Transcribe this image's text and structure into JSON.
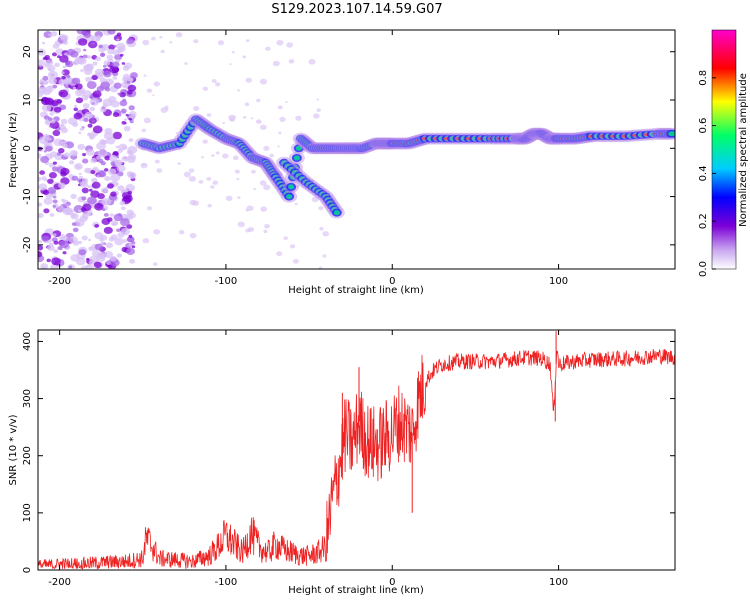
{
  "title": "S129.2023.107.14.59.G07",
  "chart_data": [
    {
      "type": "heatmap",
      "xlabel": "Height of straight line (km)",
      "ylabel": "Frequency (Hz)",
      "xlim": [
        -213,
        170
      ],
      "ylim": [
        -25,
        24.5
      ],
      "xticks": [
        -200,
        -100,
        0,
        100
      ],
      "yticks": [
        -20,
        -10,
        0,
        10,
        20
      ],
      "colorbar": {
        "label": "Normalized spectral amplitude",
        "range": [
          0,
          1
        ],
        "ticks": [
          "0.0",
          "0.2",
          "0.4",
          "0.6",
          "0.8"
        ],
        "colors": [
          "#ffffff",
          "#7b00d6",
          "#0000ff",
          "#00ccff",
          "#00ff66",
          "#ffff00",
          "#ff0000",
          "#ff00cc"
        ]
      },
      "ridge": {
        "x": [
          -150,
          -140,
          -128,
          -118,
          -110,
          -100,
          -92,
          -84,
          -76,
          -70,
          -62,
          -55,
          -48,
          -40,
          -32,
          -25,
          -18,
          -10,
          -5,
          0,
          10,
          20,
          40,
          60,
          75,
          80,
          85,
          90,
          95,
          100,
          110,
          120,
          140,
          160,
          170
        ],
        "y": [
          1,
          0,
          1,
          6,
          4,
          2,
          1,
          -2,
          -3,
          -6,
          -10,
          2,
          0,
          0,
          0,
          0,
          0,
          1,
          1,
          1,
          1,
          2,
          2,
          2,
          2,
          2,
          3,
          3,
          2,
          2,
          2,
          2.5,
          2.5,
          3,
          3
        ]
      },
      "branches": [
        {
          "x": [
            -65,
            -52,
            -40,
            -32
          ],
          "y": [
            -3,
            -7,
            -10,
            -14
          ]
        }
      ]
    },
    {
      "type": "line",
      "xlabel": "Height of straight line (km)",
      "ylabel": "SNR (10 * v/v)",
      "xlim": [
        -213,
        170
      ],
      "ylim": [
        0,
        420
      ],
      "xticks": [
        -200,
        -100,
        0,
        100
      ],
      "yticks": [
        0,
        100,
        200,
        300,
        400
      ],
      "line_color": "#ee2222",
      "x": [
        -213,
        -200,
        -180,
        -160,
        -150,
        -148,
        -145,
        -140,
        -120,
        -110,
        -105,
        -100,
        -95,
        -90,
        -85,
        -80,
        -75,
        -70,
        -65,
        -60,
        -55,
        -50,
        -45,
        -40,
        -36,
        -32,
        -28,
        -24,
        -20,
        -16,
        -12,
        -8,
        -4,
        0,
        4,
        8,
        12,
        16,
        20,
        25,
        30,
        40,
        50,
        60,
        70,
        80,
        90,
        95,
        97,
        99,
        100,
        110,
        120,
        140,
        160,
        170
      ],
      "y": [
        8,
        10,
        12,
        15,
        20,
        55,
        45,
        20,
        15,
        25,
        40,
        60,
        45,
        30,
        65,
        40,
        30,
        45,
        35,
        30,
        25,
        25,
        30,
        40,
        120,
        180,
        240,
        220,
        260,
        230,
        220,
        220,
        230,
        240,
        260,
        250,
        240,
        300,
        330,
        350,
        360,
        365,
        365,
        365,
        368,
        372,
        370,
        360,
        270,
        390,
        360,
        365,
        368,
        370,
        375,
        372
      ],
      "spikes": [
        {
          "x": -20,
          "y": 355
        },
        {
          "x": -30,
          "y": 310
        },
        {
          "x": 12,
          "y": 100
        },
        {
          "x": 98,
          "y": 260
        },
        {
          "x": 98.5,
          "y": 418
        }
      ]
    }
  ]
}
